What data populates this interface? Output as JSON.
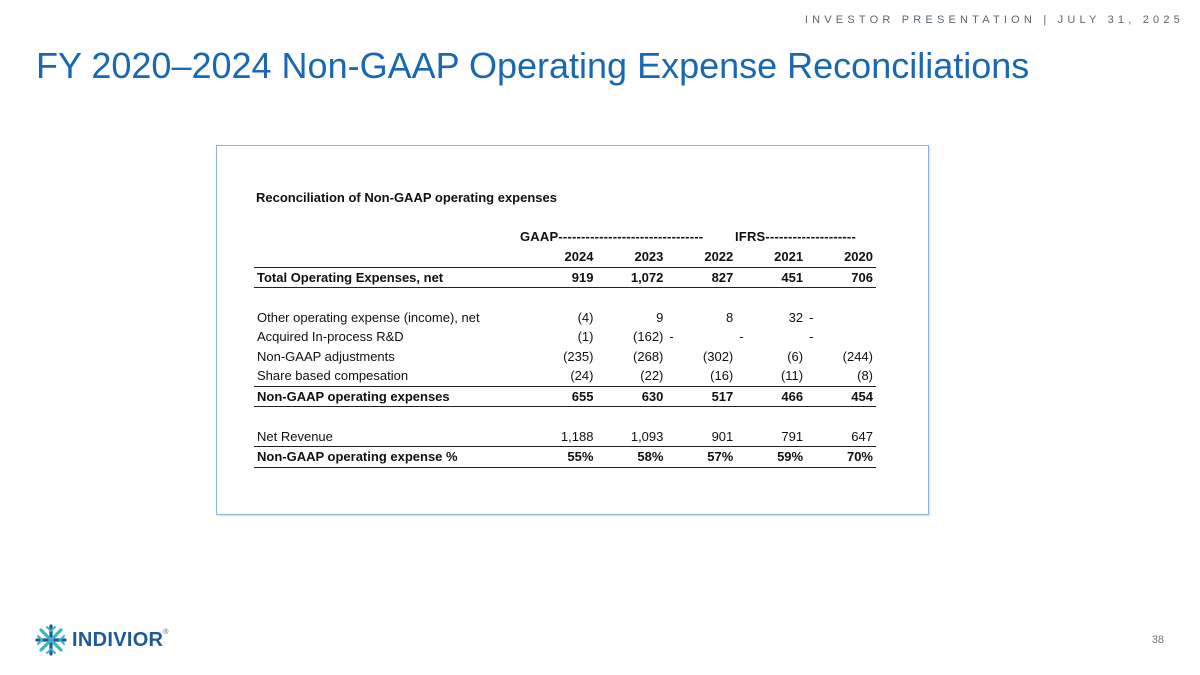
{
  "header": {
    "top_line": "INVESTOR PRESENTATION | JULY 31, 2025",
    "title": "FY 2020–2024 Non-GAAP Operating Expense Reconciliations"
  },
  "sheet": {
    "title": "Reconciliation of Non-GAAP operating expenses",
    "gaap_label": "GAAP--------------------------------",
    "ifrs_label": "IFRS--------------------",
    "years": [
      "2024",
      "2023",
      "2022",
      "2021",
      "2020"
    ],
    "rows": [
      {
        "label": "Total Operating Expenses, net",
        "values": [
          "919",
          "1,072",
          "827",
          "451",
          "706"
        ]
      },
      {
        "label": "Other operating expense (income), net",
        "values": [
          "(4)",
          "9",
          "8",
          "32",
          "-"
        ]
      },
      {
        "label": "Acquired In-process R&D",
        "values": [
          "(1)",
          "(162)",
          "-",
          "-",
          "-"
        ]
      },
      {
        "label": "Non-GAAP adjustments",
        "values": [
          "(235)",
          "(268)",
          "(302)",
          "(6)",
          "(244)"
        ]
      },
      {
        "label": "Share based compesation",
        "values": [
          "(24)",
          "(22)",
          "(16)",
          "(11)",
          "(8)"
        ]
      },
      {
        "label": "Non-GAAP operating expenses",
        "values": [
          "655",
          "630",
          "517",
          "466",
          "454"
        ]
      },
      {
        "label": "Net Revenue",
        "values": [
          "1,188",
          "1,093",
          "901",
          "791",
          "647"
        ]
      },
      {
        "label": "Non-GAAP operating expense %",
        "values": [
          "55%",
          "58%",
          "57%",
          "59%",
          "70%"
        ]
      }
    ]
  },
  "footer": {
    "logo_text": "INDIVIOR",
    "logo_mark": "®",
    "page_number": "38"
  },
  "colors": {
    "title": "#1a67b3",
    "logo_navy": "#1d5a96",
    "logo_teal": "#3fb0c9",
    "panel_border": "#8db3d9"
  }
}
